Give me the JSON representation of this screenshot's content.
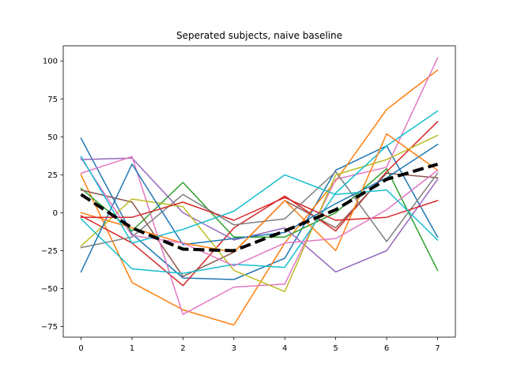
{
  "chart_data": {
    "type": "line",
    "title": "Seperated subjects, naive baseline",
    "xlabel": "",
    "ylabel": "",
    "x": [
      0,
      1,
      2,
      3,
      4,
      5,
      6,
      7
    ],
    "xlim": [
      -0.35,
      7.35
    ],
    "ylim": [
      -82,
      110
    ],
    "xticks": [
      0,
      1,
      2,
      3,
      4,
      5,
      6,
      7
    ],
    "yticks": [
      -75,
      -50,
      -25,
      0,
      25,
      50,
      75,
      100
    ],
    "grid": false,
    "legend": "none",
    "series": [
      {
        "color": "#1f77b4",
        "style": "solid",
        "values": [
          49,
          -14,
          -43,
          -44,
          -30,
          28,
          44,
          -16
        ]
      },
      {
        "color": "#ff7f0e",
        "style": "solid",
        "values": [
          25,
          -46,
          -64,
          -74,
          -20,
          21,
          68,
          94
        ]
      },
      {
        "color": "#2ca02c",
        "style": "solid",
        "values": [
          16,
          -12,
          20,
          -16,
          -16,
          0,
          29,
          -38
        ]
      },
      {
        "color": "#d62728",
        "style": "solid",
        "values": [
          -2,
          -20,
          -48,
          -10,
          11,
          -12,
          27,
          60
        ]
      },
      {
        "color": "#9467bd",
        "style": "solid",
        "values": [
          35,
          36,
          0,
          -18,
          -10,
          -39,
          -25,
          22
        ]
      },
      {
        "color": "#8c564b",
        "style": "solid",
        "values": [
          15,
          7,
          -42,
          -26,
          8,
          -10,
          26,
          23
        ]
      },
      {
        "color": "#e377c2",
        "style": "solid",
        "values": [
          26,
          37,
          -67,
          -49,
          -47,
          22,
          30,
          102
        ]
      },
      {
        "color": "#7f7f7f",
        "style": "solid",
        "values": [
          -23,
          -16,
          12,
          -8,
          -4,
          27,
          -19,
          26
        ]
      },
      {
        "color": "#bcbd22",
        "style": "solid",
        "values": [
          -22,
          9,
          4,
          -38,
          -52,
          25,
          35,
          51
        ]
      },
      {
        "color": "#17becf",
        "style": "solid",
        "values": [
          -4,
          -37,
          -40,
          -34,
          -36,
          13,
          44,
          67
        ]
      },
      {
        "color": "#1f77b4",
        "style": "solid",
        "values": [
          -39,
          32,
          -21,
          -17,
          -13,
          6,
          23,
          45
        ]
      },
      {
        "color": "#ff7f0e",
        "style": "solid",
        "values": [
          0,
          -10,
          -20,
          -26,
          8,
          -25,
          52,
          28
        ]
      },
      {
        "color": "#d62728",
        "style": "solid",
        "values": [
          -3,
          -3,
          7,
          -5,
          10,
          -5,
          -3,
          8
        ]
      },
      {
        "color": "#e377c2",
        "style": "solid",
        "values": [
          36,
          -15,
          -20,
          -35,
          -20,
          -17,
          2,
          28
        ]
      },
      {
        "color": "#17becf",
        "style": "solid",
        "values": [
          37,
          -20,
          -11,
          1,
          25,
          12,
          15,
          -18
        ]
      },
      {
        "color": "#000000",
        "style": "dashed",
        "values": [
          12,
          -10,
          -24,
          -25,
          -12,
          2,
          22,
          32
        ]
      }
    ]
  }
}
